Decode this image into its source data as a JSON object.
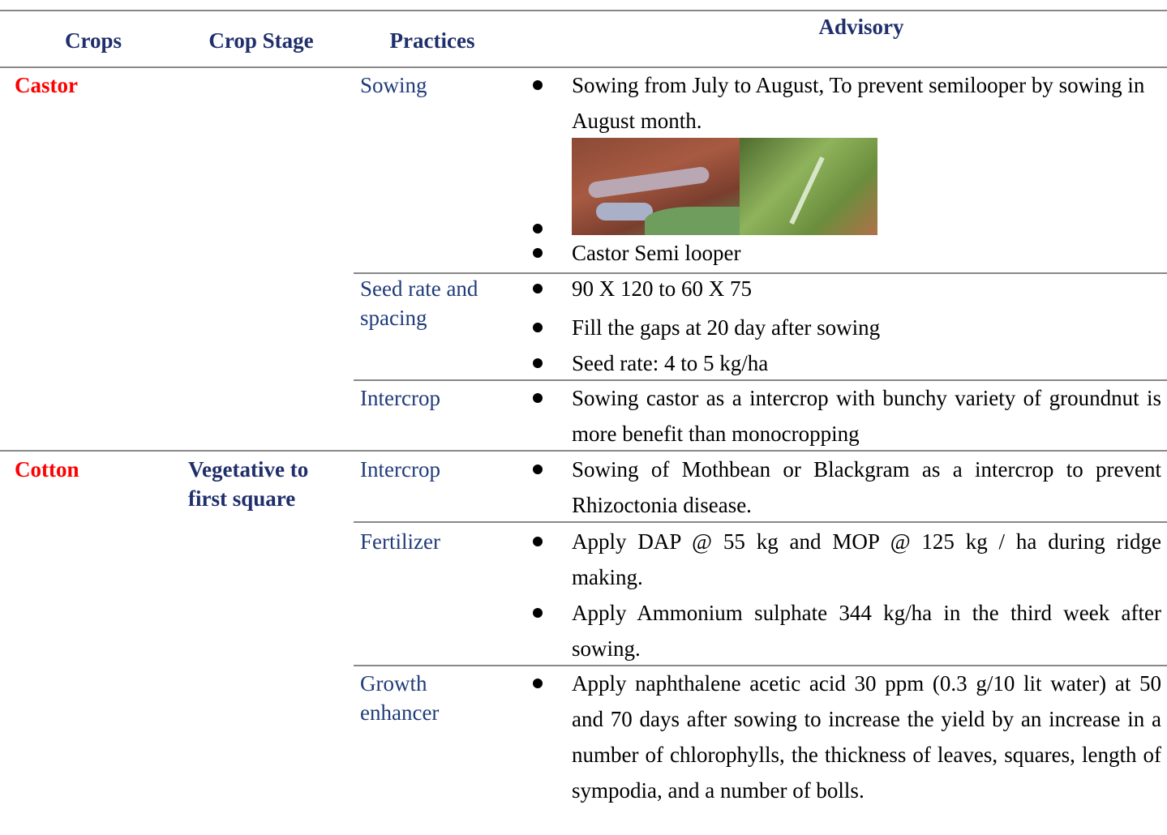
{
  "table": {
    "headers": [
      "Crops",
      "Crop Stage",
      "Practices",
      "Advisory"
    ],
    "rows": [
      {
        "crop": "Castor",
        "practices": [
          {
            "name": "Sowing",
            "advisory": [
              "Sowing from July to August, To prevent semilooper by sowing in August month.",
              "Castor Semi looper"
            ]
          },
          {
            "name": "Seed rate and spacing",
            "advisory": [
              "90 X 120 to 60 X 75",
              "Fill the gaps at 20 day after sowing",
              "Seed rate: 4 to 5 kg/ha"
            ]
          },
          {
            "name": "Intercrop",
            "advisory": [
              "Sowing castor as a intercrop with bunchy variety of groundnut is more benefit than monocropping"
            ]
          }
        ]
      },
      {
        "crop": "Cotton",
        "stage": "Vegetative to first square",
        "practices": [
          {
            "name": "Intercrop",
            "advisory": [
              "Sowing of Mothbean or Blackgram as a intercrop to prevent Rhizoctonia disease."
            ]
          },
          {
            "name": "Fertilizer",
            "advisory": [
              "Apply DAP @ 55 kg and MOP @ 125 kg / ha during ridge making.",
              "Apply Ammonium sulphate 344 kg/ha in the third week after sowing."
            ]
          },
          {
            "name": "Growth enhancer",
            "advisory": [
              "Apply naphthalene acetic acid 30 ppm (0.3 g/10 lit water) at 50 and 70 days after sowing to increase the yield by an increase in a number of chlorophylls, the thickness of leaves, squares, length of sympodia, and a number of bolls."
            ]
          }
        ]
      }
    ]
  }
}
